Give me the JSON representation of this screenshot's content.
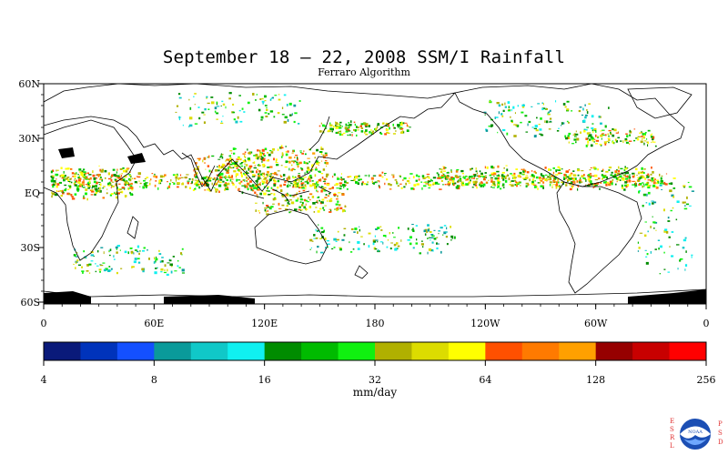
{
  "title": "September 18 – 22, 2008 SSM/I Rainfall",
  "subtitle": "Ferraro Algorithm",
  "map": {
    "lat_labels": [
      "60N",
      "30N",
      "EQ",
      "30S",
      "60S"
    ],
    "lon_labels": [
      "0",
      "60E",
      "120E",
      "180",
      "120W",
      "60W",
      "0"
    ]
  },
  "colorbar": {
    "units": "mm/day",
    "tick_labels": [
      "4",
      "8",
      "16",
      "32",
      "64",
      "128",
      "256"
    ],
    "colors": [
      "#0a1a7a",
      "#0033bb",
      "#1450ff",
      "#0a9a9a",
      "#10c8c8",
      "#10f0f0",
      "#008c00",
      "#00bb00",
      "#10f010",
      "#b0b000",
      "#dcdc00",
      "#ffff00",
      "#ff5000",
      "#ff7a00",
      "#ffa000",
      "#960000",
      "#c80000",
      "#ff0000"
    ]
  },
  "logo": {
    "left_letters": "ESRL",
    "right_letters": "PSD",
    "emblem_text": "NOAA"
  }
}
